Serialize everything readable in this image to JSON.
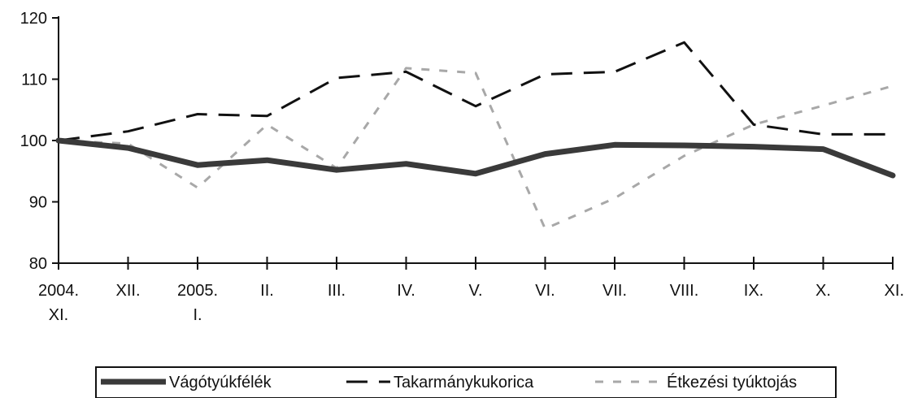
{
  "chart_data": {
    "type": "line",
    "categories": [
      [
        "2004.",
        "XI."
      ],
      [
        "XII."
      ],
      [
        "2005.",
        "I."
      ],
      [
        "II."
      ],
      [
        "III."
      ],
      [
        "IV."
      ],
      [
        "V."
      ],
      [
        "VI."
      ],
      [
        "VII."
      ],
      [
        "VIII."
      ],
      [
        "IX."
      ],
      [
        "X."
      ],
      [
        "XI."
      ]
    ],
    "ylim": [
      80,
      120
    ],
    "yticks": [
      "80",
      "90",
      "100",
      "110",
      "120"
    ],
    "grid": false,
    "legend_position": "bottom",
    "series": [
      {
        "name": "Vágótyúkfélék",
        "style": "solid",
        "color": "#3a3a3a",
        "values": [
          100,
          98.8,
          96,
          96.8,
          95.2,
          96.2,
          94.6,
          97.8,
          99.3,
          99.2,
          99,
          98.6,
          94.3
        ]
      },
      {
        "name": "Takarmánykukorica",
        "style": "dashed",
        "color": "#111111",
        "values": [
          100,
          101.5,
          104.3,
          104,
          110.2,
          111.2,
          105.6,
          110.8,
          111.2,
          116,
          102.6,
          101,
          101
        ]
      },
      {
        "name": "Étkezési tyúktojás",
        "style": "dotted",
        "color": "#a8a8a8",
        "values": [
          100,
          99.5,
          92.3,
          102.6,
          95.5,
          111.8,
          111,
          85.6,
          90.6,
          97.5,
          102.6,
          105.7,
          108.9
        ]
      }
    ]
  }
}
